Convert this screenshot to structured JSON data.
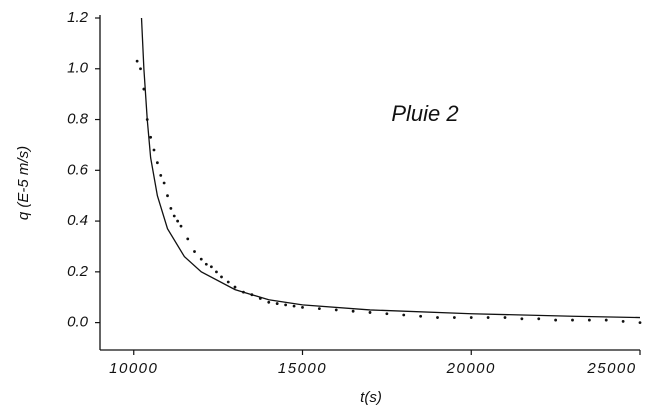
{
  "chart_data": {
    "type": "scatter",
    "annotation": "Pluie 2",
    "xlabel": "t(s)",
    "ylabel": "q (E-5 m/s)",
    "xlim": [
      9000,
      25000
    ],
    "ylim": [
      -0.1,
      1.2
    ],
    "xticks": [
      10000,
      15000,
      20000,
      25000
    ],
    "yticks": [
      {
        "value": 0,
        "label": "0.0"
      },
      0.2,
      0.4,
      0.6,
      0.8,
      {
        "value": 1,
        "label": "1.0"
      },
      1.2
    ],
    "series": [
      {
        "style": "markers",
        "color": "#111111",
        "x": [
          10100,
          10200,
          10300,
          10400,
          10500,
          10600,
          10700,
          10800,
          10900,
          11000,
          11100,
          11200,
          11300,
          11400,
          11600,
          11800,
          12000,
          12150,
          12300,
          12450,
          12600,
          12800,
          13000,
          13250,
          13500,
          13750,
          14000,
          14250,
          14500,
          14750,
          15000,
          15500,
          16000,
          16500,
          17000,
          17500,
          18000,
          18500,
          19000,
          19500,
          20000,
          20500,
          21000,
          21500,
          22000,
          22500,
          23000,
          23500,
          24000,
          24500,
          25000
        ],
        "values": [
          1.03,
          1.0,
          0.92,
          0.8,
          0.73,
          0.68,
          0.63,
          0.58,
          0.55,
          0.5,
          0.45,
          0.42,
          0.4,
          0.38,
          0.33,
          0.28,
          0.25,
          0.23,
          0.22,
          0.2,
          0.18,
          0.16,
          0.14,
          0.12,
          0.11,
          0.095,
          0.08,
          0.075,
          0.07,
          0.065,
          0.06,
          0.055,
          0.05,
          0.045,
          0.04,
          0.035,
          0.03,
          0.025,
          0.02,
          0.02,
          0.02,
          0.02,
          0.02,
          0.015,
          0.015,
          0.01,
          0.01,
          0.01,
          0.01,
          0.005,
          0.0
        ]
      },
      {
        "style": "line",
        "color": "#111111",
        "x": [
          10230,
          10300,
          10400,
          10500,
          10700,
          11000,
          11500,
          12000,
          13000,
          14000,
          15000,
          17000,
          20000,
          23000,
          25000
        ],
        "values": [
          1.2,
          1.0,
          0.8,
          0.65,
          0.5,
          0.37,
          0.26,
          0.2,
          0.13,
          0.09,
          0.07,
          0.05,
          0.035,
          0.025,
          0.02
        ]
      }
    ]
  }
}
